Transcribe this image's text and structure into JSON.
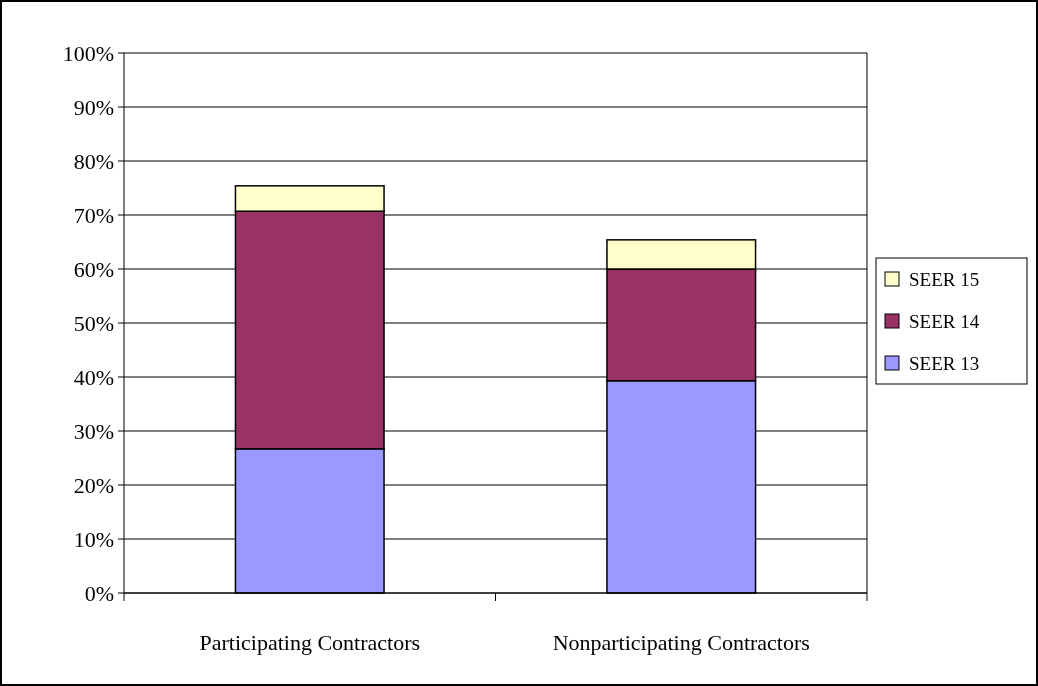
{
  "chart_data": {
    "type": "bar",
    "stacked": true,
    "categories": [
      "Participating Contractors",
      "Nonparticipating Contractors"
    ],
    "series": [
      {
        "name": "SEER 13",
        "color": "#9999ff",
        "values": [
          26.7,
          39.3
        ]
      },
      {
        "name": "SEER 14",
        "color": "#993366",
        "values": [
          44.0,
          20.7
        ]
      },
      {
        "name": "SEER 15",
        "color": "#ffffcc",
        "values": [
          4.7,
          5.4
        ]
      }
    ],
    "ylim": [
      0,
      100
    ],
    "yticks": [
      {
        "value": 0,
        "label": "0%"
      },
      {
        "value": 10,
        "label": "10%"
      },
      {
        "value": 20,
        "label": "20%"
      },
      {
        "value": 30,
        "label": "30%"
      },
      {
        "value": 40,
        "label": "40%"
      },
      {
        "value": 50,
        "label": "50%"
      },
      {
        "value": 60,
        "label": "60%"
      },
      {
        "value": 70,
        "label": "70%"
      },
      {
        "value": 80,
        "label": "80%"
      },
      {
        "value": 90,
        "label": "90%"
      },
      {
        "value": 100,
        "label": "100%"
      }
    ],
    "grid": "y",
    "legend": "right"
  }
}
